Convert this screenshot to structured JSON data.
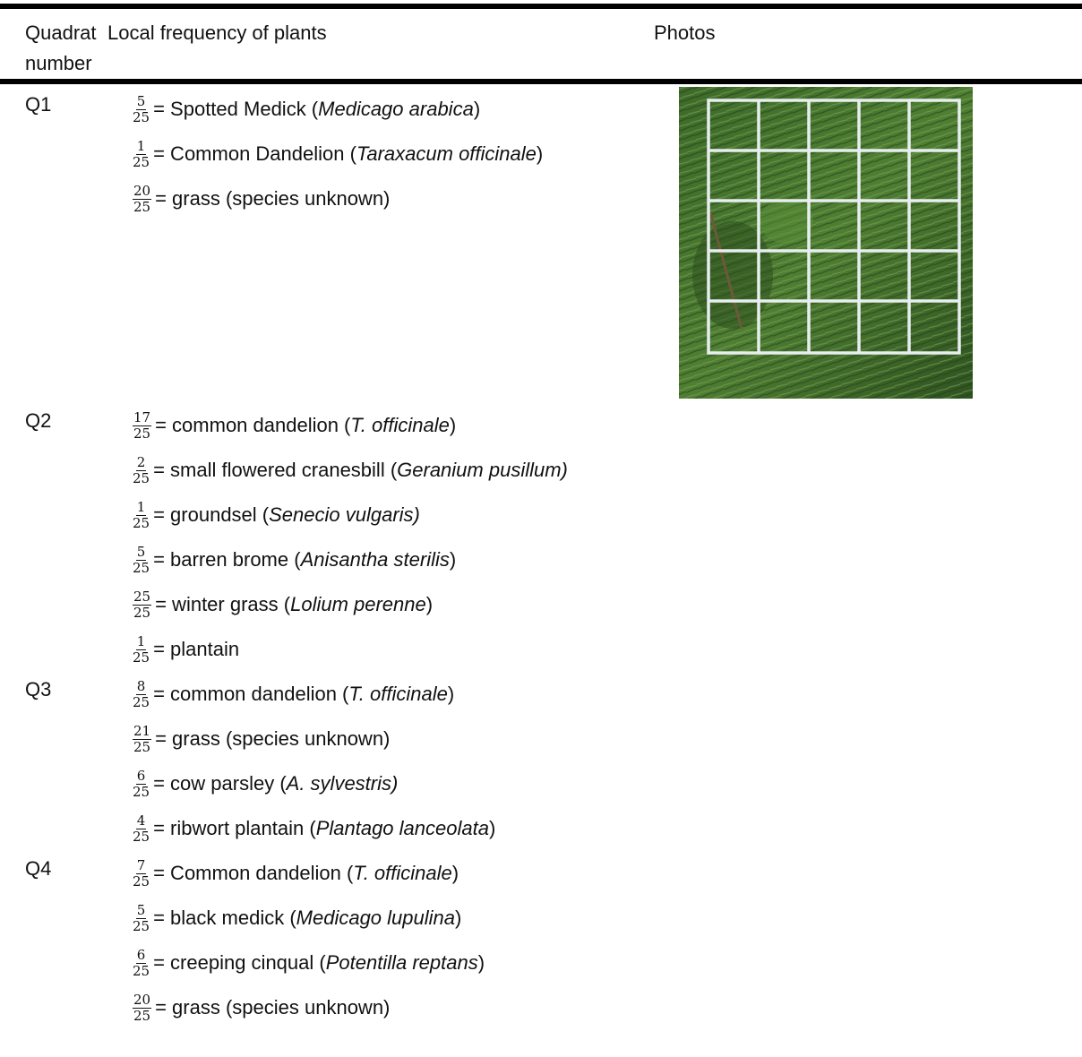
{
  "header": {
    "columns": [
      "Quadrat number",
      "Local frequency of plants",
      "Photos"
    ]
  },
  "table": {
    "rows": [
      {
        "quadrat": "Q1",
        "entries": [
          {
            "numerator": 5,
            "denominator": 25,
            "text": [
              "= Spotted Medick (",
              "Medicago arabica",
              ")"
            ]
          },
          {
            "numerator": 1,
            "denominator": 25,
            "text": [
              "= Common Dandelion (",
              "Taraxacum officinale",
              ")"
            ]
          },
          {
            "numerator": 20,
            "denominator": 25,
            "text": [
              "= grass (species unknown)"
            ]
          }
        ]
      },
      {
        "quadrat": "Q2",
        "entries": [
          {
            "numerator": 17,
            "denominator": 25,
            "text": [
              "= common dandelion (",
              "T. officinale",
              ")"
            ]
          },
          {
            "numerator": 2,
            "denominator": 25,
            "text": [
              "= small flowered cranesbill (",
              "Geranium pusillum)"
            ]
          },
          {
            "numerator": 1,
            "denominator": 25,
            "text": [
              "= groundsel (",
              "Senecio vulgaris)"
            ]
          },
          {
            "numerator": 5,
            "denominator": 25,
            "text": [
              "= barren brome (",
              "Anisantha sterilis",
              ")"
            ]
          },
          {
            "numerator": 25,
            "denominator": 25,
            "text": [
              "= winter grass (",
              "Lolium perenne",
              ")"
            ]
          },
          {
            "numerator": 1,
            "denominator": 25,
            "text": [
              "= plantain"
            ]
          }
        ]
      },
      {
        "quadrat": "Q3",
        "entries": [
          {
            "numerator": 8,
            "denominator": 25,
            "text": [
              "= common dandelion (",
              "T. officinale",
              ")"
            ]
          },
          {
            "numerator": 21,
            "denominator": 25,
            "text": [
              "= grass (species unknown)"
            ]
          },
          {
            "numerator": 6,
            "denominator": 25,
            "text": [
              "= cow parsley (",
              "A. sylvestris)"
            ]
          },
          {
            "numerator": 4,
            "denominator": 25,
            "text": [
              "= ribwort plantain (",
              "Plantago lanceolata",
              ")"
            ]
          }
        ]
      },
      {
        "quadrat": "Q4",
        "entries": [
          {
            "numerator": 7,
            "denominator": 25,
            "text": [
              "= Common dandelion (",
              "T. officinale",
              ")"
            ]
          },
          {
            "numerator": 5,
            "denominator": 25,
            "text": [
              "= black medick (",
              "Medicago lupulina",
              ")"
            ]
          },
          {
            "numerator": 6,
            "denominator": 25,
            "text": [
              "= creeping cinqual (",
              "Potentilla reptans",
              ")"
            ]
          },
          {
            "numerator": 20,
            "denominator": 25,
            "text": [
              "= grass (species unknown)"
            ]
          }
        ]
      }
    ]
  }
}
